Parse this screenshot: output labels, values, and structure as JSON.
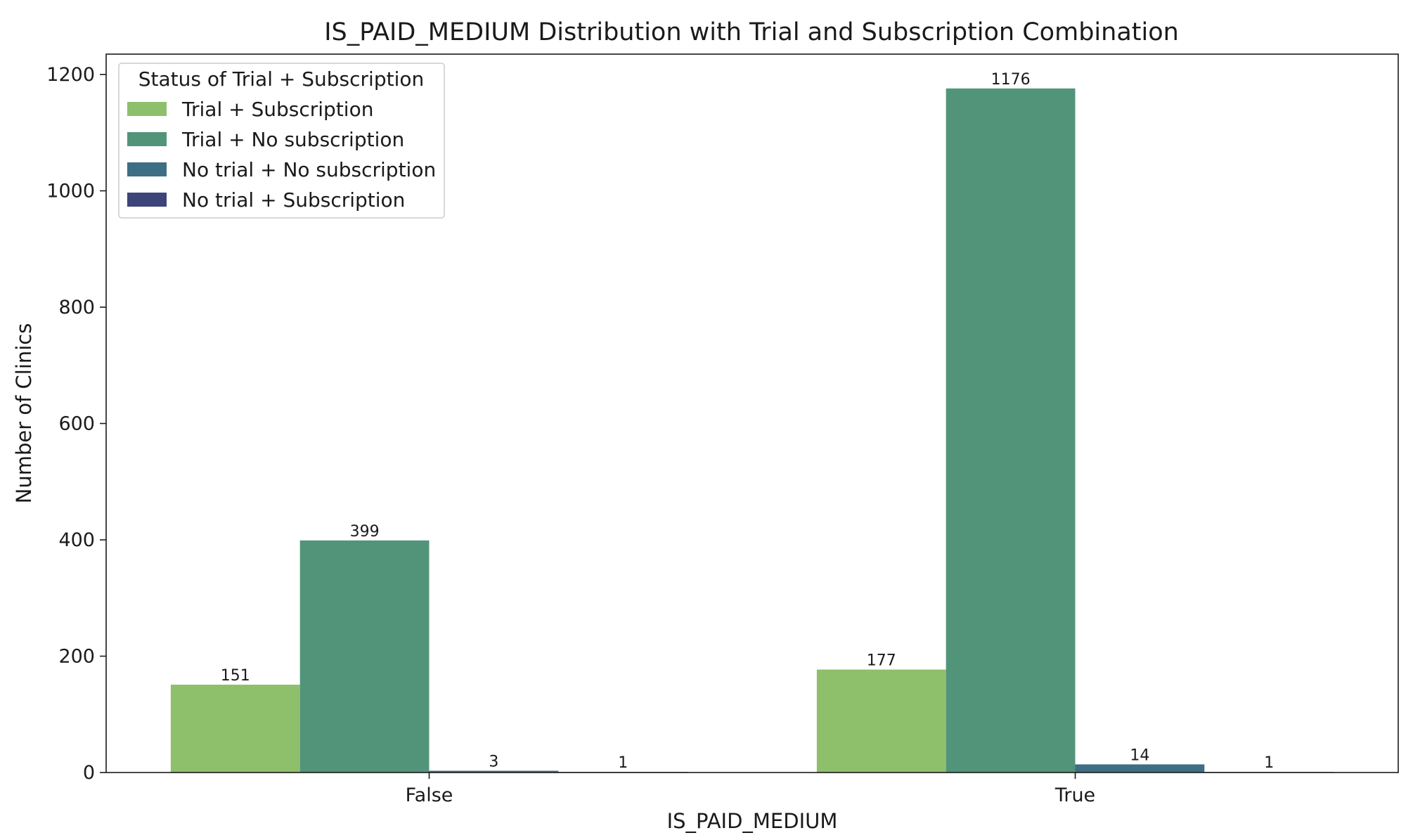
{
  "chart_data": {
    "type": "bar",
    "title": "IS_PAID_MEDIUM Distribution with Trial and Subscription Combination",
    "xlabel": "IS_PAID_MEDIUM",
    "ylabel": "Number of Clinics",
    "categories": [
      "False",
      "True"
    ],
    "ylim": [
      0,
      1235
    ],
    "yticks": [
      0,
      200,
      400,
      600,
      800,
      1000,
      1200
    ],
    "grid": false,
    "legend": {
      "title": "Status of Trial + Subscription",
      "placement": "top-left"
    },
    "series": [
      {
        "name": "Trial + Subscription",
        "values": [
          151,
          177
        ],
        "color": "#8ebf6b"
      },
      {
        "name": "Trial + No subscription",
        "values": [
          399,
          1176
        ],
        "color": "#52947a"
      },
      {
        "name": "No trial + No subscription",
        "values": [
          3,
          14
        ],
        "color": "#3e6e83"
      },
      {
        "name": "No trial + Subscription",
        "values": [
          1,
          1
        ],
        "color": "#3d4479"
      }
    ]
  }
}
